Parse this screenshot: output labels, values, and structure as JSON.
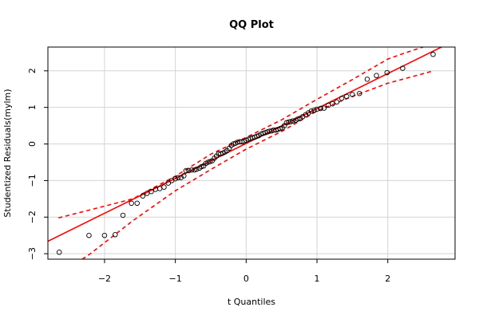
{
  "chart_data": {
    "type": "scatter",
    "title": "QQ Plot",
    "xlabel": "t Quantiles",
    "ylabel": "Studentized Residuals(mylm)",
    "xlim": [
      -2.8,
      2.95
    ],
    "ylim": [
      -3.15,
      2.65
    ],
    "xticks": [
      -2,
      -1,
      0,
      1,
      2
    ],
    "yticks": [
      -3,
      -2,
      -1,
      0,
      1,
      2
    ],
    "xtick_labels": [
      "−2",
      "−1",
      "0",
      "1",
      "2"
    ],
    "ytick_labels": [
      "−3",
      "−2",
      "−1",
      "0",
      "1",
      "2"
    ],
    "grid": true,
    "colors": {
      "points": "#000000",
      "reference_line": "#ff0000",
      "envelope": "#ff0000",
      "grid": "#d3d3d3"
    },
    "reference_line": {
      "intercept": 0.015,
      "slope": 0.955
    },
    "envelope": {
      "upper": [
        [
          -2.65,
          -2.02
        ],
        [
          -2.2,
          -1.8
        ],
        [
          -1.6,
          -1.5
        ],
        [
          -1.0,
          -0.88
        ],
        [
          -0.5,
          -0.28
        ],
        [
          0.0,
          0.18
        ],
        [
          0.5,
          0.66
        ],
        [
          1.0,
          1.22
        ],
        [
          1.5,
          1.76
        ],
        [
          2.0,
          2.32
        ],
        [
          2.2,
          2.46
        ],
        [
          2.65,
          2.75
        ]
      ],
      "lower": [
        [
          -2.65,
          -3.6
        ],
        [
          -2.2,
          -3.0
        ],
        [
          -1.6,
          -2.1
        ],
        [
          -1.0,
          -1.28
        ],
        [
          -0.5,
          -0.7
        ],
        [
          0.0,
          -0.14
        ],
        [
          0.5,
          0.34
        ],
        [
          1.0,
          0.9
        ],
        [
          1.5,
          1.3
        ],
        [
          2.0,
          1.66
        ],
        [
          2.65,
          2.0
        ]
      ]
    },
    "points": [
      [
        -2.64,
        -2.96
      ],
      [
        -2.22,
        -2.5
      ],
      [
        -2.0,
        -2.5
      ],
      [
        -1.85,
        -2.48
      ],
      [
        -1.74,
        -1.95
      ],
      [
        -1.62,
        -1.62
      ],
      [
        -1.54,
        -1.62
      ],
      [
        -1.46,
        -1.42
      ],
      [
        -1.4,
        -1.35
      ],
      [
        -1.34,
        -1.3
      ],
      [
        -1.28,
        -1.24
      ],
      [
        -1.22,
        -1.22
      ],
      [
        -1.16,
        -1.18
      ],
      [
        -1.1,
        -1.07
      ],
      [
        -1.05,
        -1.0
      ],
      [
        -1.0,
        -0.95
      ],
      [
        -0.96,
        -0.92
      ],
      [
        -0.92,
        -0.92
      ],
      [
        -0.88,
        -0.87
      ],
      [
        -0.85,
        -0.73
      ],
      [
        -0.81,
        -0.73
      ],
      [
        -0.77,
        -0.71
      ],
      [
        -0.73,
        -0.71
      ],
      [
        -0.7,
        -0.69
      ],
      [
        -0.66,
        -0.66
      ],
      [
        -0.63,
        -0.62
      ],
      [
        -0.6,
        -0.6
      ],
      [
        -0.57,
        -0.53
      ],
      [
        -0.54,
        -0.5
      ],
      [
        -0.51,
        -0.48
      ],
      [
        -0.48,
        -0.46
      ],
      [
        -0.45,
        -0.39
      ],
      [
        -0.42,
        -0.33
      ],
      [
        -0.39,
        -0.27
      ],
      [
        -0.36,
        -0.27
      ],
      [
        -0.33,
        -0.25
      ],
      [
        -0.3,
        -0.22
      ],
      [
        -0.27,
        -0.18
      ],
      [
        -0.24,
        -0.12
      ],
      [
        -0.21,
        -0.04
      ],
      [
        -0.18,
        0.0
      ],
      [
        -0.15,
        0.02
      ],
      [
        -0.12,
        0.05
      ],
      [
        -0.09,
        0.06
      ],
      [
        -0.06,
        0.06
      ],
      [
        -0.03,
        0.07
      ],
      [
        0.0,
        0.1
      ],
      [
        0.03,
        0.13
      ],
      [
        0.06,
        0.15
      ],
      [
        0.09,
        0.17
      ],
      [
        0.12,
        0.19
      ],
      [
        0.15,
        0.21
      ],
      [
        0.18,
        0.23
      ],
      [
        0.21,
        0.27
      ],
      [
        0.24,
        0.29
      ],
      [
        0.27,
        0.31
      ],
      [
        0.3,
        0.33
      ],
      [
        0.33,
        0.35
      ],
      [
        0.36,
        0.36
      ],
      [
        0.39,
        0.38
      ],
      [
        0.42,
        0.38
      ],
      [
        0.45,
        0.4
      ],
      [
        0.48,
        0.42
      ],
      [
        0.51,
        0.44
      ],
      [
        0.54,
        0.5
      ],
      [
        0.57,
        0.58
      ],
      [
        0.6,
        0.6
      ],
      [
        0.63,
        0.61
      ],
      [
        0.66,
        0.63
      ],
      [
        0.7,
        0.65
      ],
      [
        0.73,
        0.68
      ],
      [
        0.76,
        0.7
      ],
      [
        0.8,
        0.75
      ],
      [
        0.84,
        0.8
      ],
      [
        0.88,
        0.85
      ],
      [
        0.92,
        0.9
      ],
      [
        0.96,
        0.92
      ],
      [
        1.0,
        0.95
      ],
      [
        1.05,
        0.97
      ],
      [
        1.1,
        0.98
      ],
      [
        1.16,
        1.06
      ],
      [
        1.22,
        1.1
      ],
      [
        1.28,
        1.15
      ],
      [
        1.35,
        1.25
      ],
      [
        1.42,
        1.3
      ],
      [
        1.5,
        1.35
      ],
      [
        1.6,
        1.38
      ],
      [
        1.71,
        1.77
      ],
      [
        1.84,
        1.87
      ],
      [
        1.99,
        1.95
      ],
      [
        2.21,
        2.07
      ],
      [
        2.64,
        2.45
      ]
    ]
  }
}
